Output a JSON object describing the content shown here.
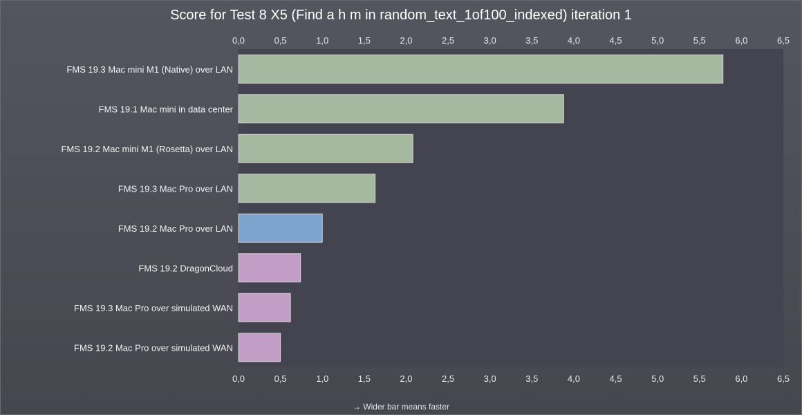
{
  "footnote": "→ Wider bar means faster",
  "chart_data": {
    "type": "bar",
    "orientation": "horizontal",
    "title": "Score for Test 8 X5 (Find a h m in random_text_1of100_indexed) iteration 1",
    "xlim": [
      0,
      6.5
    ],
    "ticks": [
      "0,0",
      "0,5",
      "1,0",
      "1,5",
      "2,0",
      "2,5",
      "3,0",
      "3,5",
      "4,0",
      "4,5",
      "5,0",
      "5,5",
      "6,0",
      "6,5"
    ],
    "tick_values": [
      0,
      0.5,
      1.0,
      1.5,
      2.0,
      2.5,
      3.0,
      3.5,
      4.0,
      4.5,
      5.0,
      5.5,
      6.0,
      6.5
    ],
    "axis_positions": [
      "top",
      "bottom"
    ],
    "grid": false,
    "categories": [
      "FMS 19.3 Mac mini M1 (Native) over LAN",
      "FMS 19.1 Mac mini in data center",
      "FMS 19.2 Mac mini M1 (Rosetta) over LAN",
      "FMS 19.3 Mac Pro over LAN",
      "FMS 19.2 Mac Pro over LAN",
      "FMS 19.2 DragonCloud",
      "FMS 19.3 Mac Pro over simulated WAN",
      "FMS 19.2 Mac Pro over simulated WAN"
    ],
    "values": [
      5.78,
      3.88,
      2.08,
      1.63,
      1.0,
      0.74,
      0.62,
      0.5
    ],
    "colors": [
      "#a5b9a0",
      "#a5b9a0",
      "#a5b9a0",
      "#a5b9a0",
      "#7ba3cb",
      "#c29ec6",
      "#c29ec6",
      "#c29ec6"
    ],
    "plot_background": "#444450",
    "bar_border": "#d0d0d0"
  }
}
